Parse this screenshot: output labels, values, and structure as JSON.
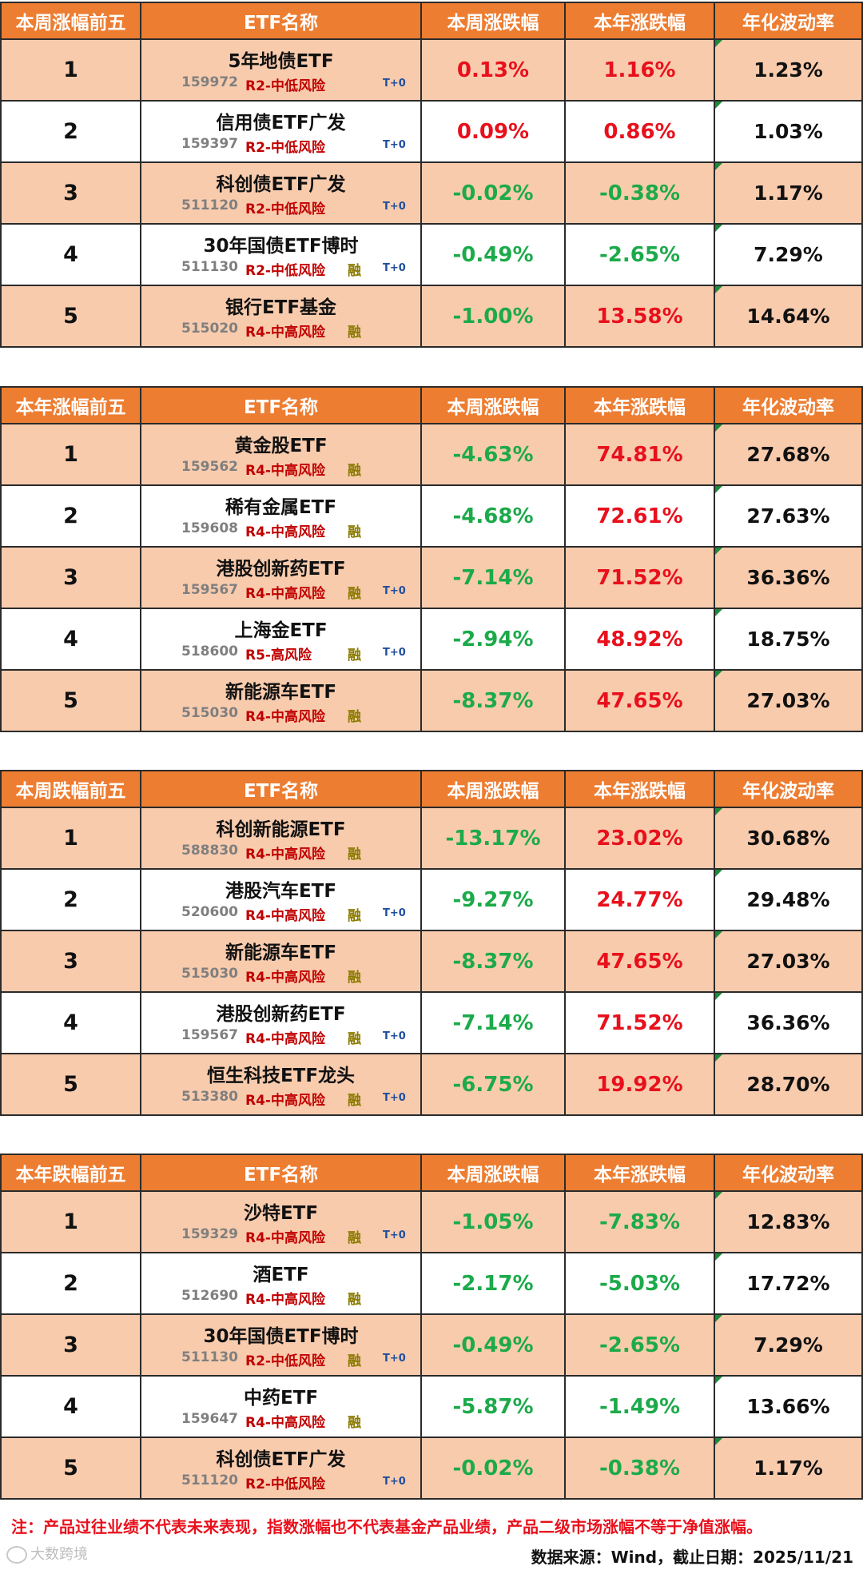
{
  "header_columns": {
    "name": "ETF名称",
    "week": "本周涨跌幅",
    "year": "本年涨跌幅",
    "vol": "年化波动率"
  },
  "sections": [
    {
      "title": "本周涨幅前五",
      "rows": [
        {
          "rank": "1",
          "name": "5年地债ETF",
          "code": "159972",
          "risk": "R2-中低风险",
          "rong": "",
          "t0": "T+0",
          "week": "0.13%",
          "week_dir": "up",
          "year": "1.16%",
          "year_dir": "up",
          "vol": "1.23%"
        },
        {
          "rank": "2",
          "name": "信用债ETF广发",
          "code": "159397",
          "risk": "R2-中低风险",
          "rong": "",
          "t0": "T+0",
          "week": "0.09%",
          "week_dir": "up",
          "year": "0.86%",
          "year_dir": "up",
          "vol": "1.03%"
        },
        {
          "rank": "3",
          "name": "科创债ETF广发",
          "code": "511120",
          "risk": "R2-中低风险",
          "rong": "",
          "t0": "T+0",
          "week": "-0.02%",
          "week_dir": "down",
          "year": "-0.38%",
          "year_dir": "down",
          "vol": "1.17%"
        },
        {
          "rank": "4",
          "name": "30年国债ETF博时",
          "code": "511130",
          "risk": "R2-中低风险",
          "rong": "融",
          "t0": "T+0",
          "week": "-0.49%",
          "week_dir": "down",
          "year": "-2.65%",
          "year_dir": "down",
          "vol": "7.29%"
        },
        {
          "rank": "5",
          "name": "银行ETF基金",
          "code": "515020",
          "risk": "R4-中高风险",
          "rong": "融",
          "t0": "",
          "week": "-1.00%",
          "week_dir": "down",
          "year": "13.58%",
          "year_dir": "up",
          "vol": "14.64%"
        }
      ]
    },
    {
      "title": "本年涨幅前五",
      "rows": [
        {
          "rank": "1",
          "name": "黄金股ETF",
          "code": "159562",
          "risk": "R4-中高风险",
          "rong": "融",
          "t0": "",
          "week": "-4.63%",
          "week_dir": "down",
          "year": "74.81%",
          "year_dir": "up",
          "vol": "27.68%"
        },
        {
          "rank": "2",
          "name": "稀有金属ETF",
          "code": "159608",
          "risk": "R4-中高风险",
          "rong": "融",
          "t0": "",
          "week": "-4.68%",
          "week_dir": "down",
          "year": "72.61%",
          "year_dir": "up",
          "vol": "27.63%"
        },
        {
          "rank": "3",
          "name": "港股创新药ETF",
          "code": "159567",
          "risk": "R4-中高风险",
          "rong": "融",
          "t0": "T+0",
          "week": "-7.14%",
          "week_dir": "down",
          "year": "71.52%",
          "year_dir": "up",
          "vol": "36.36%"
        },
        {
          "rank": "4",
          "name": "上海金ETF",
          "code": "518600",
          "risk": "R5-高风险",
          "rong": "融",
          "t0": "T+0",
          "week": "-2.94%",
          "week_dir": "down",
          "year": "48.92%",
          "year_dir": "up",
          "vol": "18.75%"
        },
        {
          "rank": "5",
          "name": "新能源车ETF",
          "code": "515030",
          "risk": "R4-中高风险",
          "rong": "融",
          "t0": "",
          "week": "-8.37%",
          "week_dir": "down",
          "year": "47.65%",
          "year_dir": "up",
          "vol": "27.03%"
        }
      ]
    },
    {
      "title": "本周跌幅前五",
      "rows": [
        {
          "rank": "1",
          "name": "科创新能源ETF",
          "code": "588830",
          "risk": "R4-中高风险",
          "rong": "融",
          "t0": "",
          "week": "-13.17%",
          "week_dir": "down",
          "year": "23.02%",
          "year_dir": "up",
          "vol": "30.68%"
        },
        {
          "rank": "2",
          "name": "港股汽车ETF",
          "code": "520600",
          "risk": "R4-中高风险",
          "rong": "融",
          "t0": "T+0",
          "week": "-9.27%",
          "week_dir": "down",
          "year": "24.77%",
          "year_dir": "up",
          "vol": "29.48%"
        },
        {
          "rank": "3",
          "name": "新能源车ETF",
          "code": "515030",
          "risk": "R4-中高风险",
          "rong": "融",
          "t0": "",
          "week": "-8.37%",
          "week_dir": "down",
          "year": "47.65%",
          "year_dir": "up",
          "vol": "27.03%"
        },
        {
          "rank": "4",
          "name": "港股创新药ETF",
          "code": "159567",
          "risk": "R4-中高风险",
          "rong": "融",
          "t0": "T+0",
          "week": "-7.14%",
          "week_dir": "down",
          "year": "71.52%",
          "year_dir": "up",
          "vol": "36.36%"
        },
        {
          "rank": "5",
          "name": "恒生科技ETF龙头",
          "code": "513380",
          "risk": "R4-中高风险",
          "rong": "融",
          "t0": "T+0",
          "week": "-6.75%",
          "week_dir": "down",
          "year": "19.92%",
          "year_dir": "up",
          "vol": "28.70%"
        }
      ]
    },
    {
      "title": "本年跌幅前五",
      "rows": [
        {
          "rank": "1",
          "name": "沙特ETF",
          "code": "159329",
          "risk": "R4-中高风险",
          "rong": "融",
          "t0": "T+0",
          "week": "-1.05%",
          "week_dir": "down",
          "year": "-7.83%",
          "year_dir": "down",
          "vol": "12.83%"
        },
        {
          "rank": "2",
          "name": "酒ETF",
          "code": "512690",
          "risk": "R4-中高风险",
          "rong": "融",
          "t0": "",
          "week": "-2.17%",
          "week_dir": "down",
          "year": "-5.03%",
          "year_dir": "down",
          "vol": "17.72%"
        },
        {
          "rank": "3",
          "name": "30年国债ETF博时",
          "code": "511130",
          "risk": "R2-中低风险",
          "rong": "融",
          "t0": "T+0",
          "week": "-0.49%",
          "week_dir": "down",
          "year": "-2.65%",
          "year_dir": "down",
          "vol": "7.29%"
        },
        {
          "rank": "4",
          "name": "中药ETF",
          "code": "159647",
          "risk": "R4-中高风险",
          "rong": "融",
          "t0": "",
          "week": "-5.87%",
          "week_dir": "down",
          "year": "-1.49%",
          "year_dir": "down",
          "vol": "13.66%"
        },
        {
          "rank": "5",
          "name": "科创债ETF广发",
          "code": "511120",
          "risk": "R2-中低风险",
          "rong": "",
          "t0": "T+0",
          "week": "-0.02%",
          "week_dir": "down",
          "year": "-0.38%",
          "year_dir": "down",
          "vol": "1.17%"
        }
      ]
    }
  ],
  "colors": {
    "up": "#E8101C",
    "down": "#1CAA4A",
    "header": "#ED7D31",
    "band": "#F8CBAD"
  },
  "footer": {
    "note": "注：产品过往业绩不代表未来表现，指数涨幅也不代表基金产品业绩，产品二级市场涨幅不等于净值涨幅。",
    "source": "数据来源：Wind，截止日期：2025/11/21",
    "watermark": "大数跨境"
  }
}
